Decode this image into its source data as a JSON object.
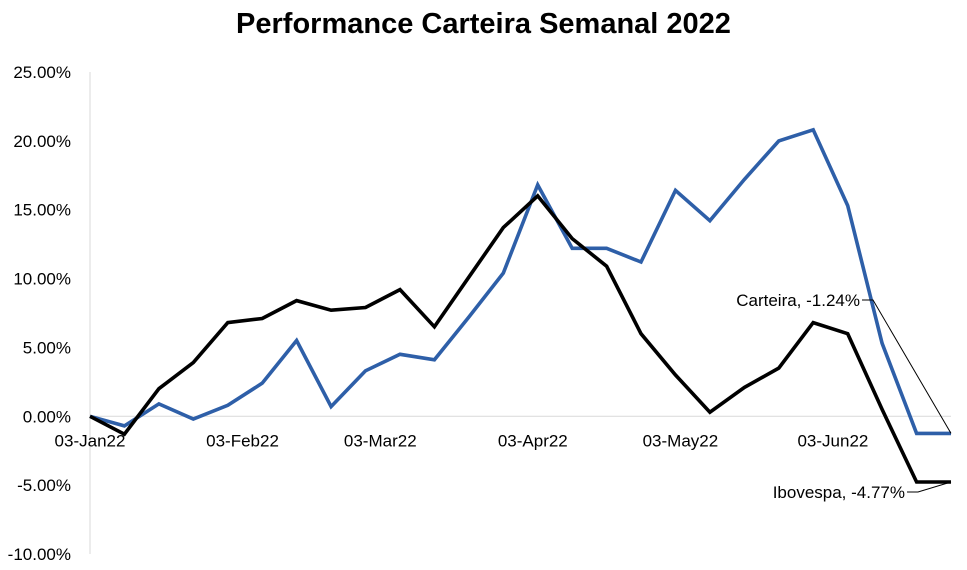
{
  "chart_data": {
    "type": "line",
    "title": "Performance Carteira Semanal 2022",
    "xlabel": "",
    "ylabel": "",
    "ylim": [
      -10,
      25
    ],
    "y_tick_step": 5,
    "y_tick_labels": [
      "25.00%",
      "20.00%",
      "15.00%",
      "10.00%",
      "5.00%",
      "0.00%",
      "-5.00%",
      "-10.00%"
    ],
    "y_ticks": [
      25,
      20,
      15,
      10,
      5,
      0,
      -5,
      -10
    ],
    "x_tick_labels": [
      "03-Jan22",
      "03-Feb22",
      "03-Mar22",
      "03-Apr22",
      "03-May22",
      "03-Jun22"
    ],
    "x_tick_dates": [
      "2022-01-03",
      "2022-02-03",
      "2022-03-03",
      "2022-04-03",
      "2022-05-03",
      "2022-06-03"
    ],
    "xlim": [
      "2022-01-03",
      "2022-06-27"
    ],
    "grid": false,
    "legend": "none",
    "series": [
      {
        "name": "Carteira",
        "color": "#2e5fa8",
        "x": [
          "2022-01-03",
          "2022-01-10",
          "2022-01-17",
          "2022-01-24",
          "2022-01-31",
          "2022-02-07",
          "2022-02-14",
          "2022-02-21",
          "2022-02-28",
          "2022-03-07",
          "2022-03-14",
          "2022-03-21",
          "2022-03-28",
          "2022-04-04",
          "2022-04-11",
          "2022-04-18",
          "2022-04-25",
          "2022-05-02",
          "2022-05-09",
          "2022-05-16",
          "2022-05-23",
          "2022-05-30",
          "2022-06-06",
          "2022-06-13",
          "2022-06-20",
          "2022-06-27"
        ],
        "values": [
          0.0,
          -0.7,
          0.9,
          -0.2,
          0.8,
          2.4,
          5.5,
          0.7,
          3.3,
          4.5,
          4.1,
          7.2,
          10.4,
          16.8,
          12.2,
          12.2,
          11.2,
          16.4,
          14.2,
          17.2,
          20.0,
          20.8,
          15.3,
          5.3,
          -1.24,
          -1.24
        ],
        "end_label": "Carteira, -1.24%"
      },
      {
        "name": "Ibovespa",
        "color": "#000000",
        "x": [
          "2022-01-03",
          "2022-01-10",
          "2022-01-17",
          "2022-01-24",
          "2022-01-31",
          "2022-02-07",
          "2022-02-14",
          "2022-02-21",
          "2022-02-28",
          "2022-03-07",
          "2022-03-14",
          "2022-03-21",
          "2022-03-28",
          "2022-04-04",
          "2022-04-11",
          "2022-04-18",
          "2022-04-25",
          "2022-05-02",
          "2022-05-09",
          "2022-05-16",
          "2022-05-23",
          "2022-05-30",
          "2022-06-06",
          "2022-06-13",
          "2022-06-20",
          "2022-06-27"
        ],
        "values": [
          0.0,
          -1.3,
          2.0,
          3.9,
          6.8,
          7.1,
          8.4,
          7.7,
          7.9,
          9.2,
          6.5,
          10.1,
          13.7,
          16.0,
          12.9,
          10.9,
          6.0,
          3.0,
          0.3,
          2.1,
          3.5,
          6.8,
          6.0,
          0.5,
          -4.77,
          -4.77
        ],
        "end_label": "Ibovespa, -4.77%"
      }
    ],
    "annotations": [
      {
        "text": "Carteira, -1.24%"
      },
      {
        "text": "Ibovespa, -4.77%"
      }
    ]
  }
}
